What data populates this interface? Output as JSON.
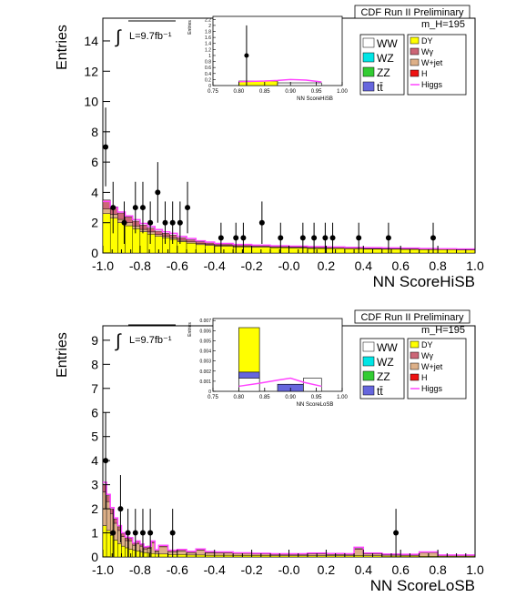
{
  "legend_items": [
    {
      "label": "WW",
      "color": "#ffffff"
    },
    {
      "label": "WZ",
      "color": "#00e5e5"
    },
    {
      "label": "ZZ",
      "color": "#33cc33"
    },
    {
      "label": "tt̄",
      "color": "#6666dd"
    },
    {
      "label": "DY",
      "color": "#ffff00"
    },
    {
      "label": "Wγ",
      "color": "#cc6677"
    },
    {
      "label": "W+jet",
      "color": "#ddb088"
    },
    {
      "label": "H",
      "color": "#ee1111"
    },
    {
      "label": "Higgs",
      "color": "#ff44ff"
    }
  ],
  "chart_data": [
    {
      "type": "bar",
      "header": "CDF Run II Preliminary",
      "mass_label": "m_H=195",
      "lumi_label": "L=9.7fb⁻¹",
      "xlabel": "NN ScoreHiSB",
      "ylabel": "Entries",
      "xlim": [
        -1.0,
        1.0
      ],
      "ylim": [
        0,
        15.5
      ],
      "xticks": [
        -1.0,
        -0.8,
        -0.6,
        -0.4,
        -0.2,
        0.0,
        0.2,
        0.4,
        0.6,
        0.8,
        1.0
      ],
      "xtick_labels": [
        "-1.0",
        "-0.8",
        "-0.6",
        "-0.4",
        "-0.2",
        "-0.0",
        "0.2",
        "0.4",
        "0.6",
        "0.8",
        "1.0"
      ],
      "yticks": [
        0,
        2,
        4,
        6,
        8,
        10,
        12,
        14
      ],
      "stack": [
        {
          "series": "DY",
          "color": "#ffff00",
          "x": [
            -1.0,
            -0.96,
            -0.92,
            -0.88,
            -0.84,
            -0.8,
            -0.76,
            -0.72,
            -0.68,
            -0.64,
            -0.6,
            -0.55,
            -0.5,
            -0.45,
            -0.4,
            -0.3,
            -0.2,
            -0.1,
            0.0,
            0.1,
            0.2,
            0.3,
            0.4,
            0.5,
            0.6,
            0.7,
            0.8,
            0.9
          ],
          "values": [
            2.6,
            2.3,
            2.0,
            1.8,
            1.6,
            1.4,
            1.25,
            1.1,
            1.0,
            0.9,
            0.75,
            0.65,
            0.55,
            0.5,
            0.45,
            0.4,
            0.38,
            0.35,
            0.33,
            0.3,
            0.3,
            0.28,
            0.26,
            0.25,
            0.24,
            0.22,
            0.22,
            0.2
          ]
        },
        {
          "series": "W+jet",
          "color": "#ddb088",
          "values": [
            0.3,
            0.25,
            0.22,
            0.2,
            0.18,
            0.16,
            0.14,
            0.12,
            0.1,
            0.1,
            0.09,
            0.08,
            0.07,
            0.06,
            0.05,
            0.05,
            0.05,
            0.04,
            0.04,
            0.04,
            0.04,
            0.03,
            0.03,
            0.03,
            0.03,
            0.03,
            0.02,
            0.02
          ]
        },
        {
          "series": "Wγ",
          "color": "#cc6677",
          "values": [
            0.6,
            0.5,
            0.42,
            0.38,
            0.32,
            0.28,
            0.25,
            0.22,
            0.2,
            0.18,
            0.16,
            0.14,
            0.12,
            0.1,
            0.08,
            0.07,
            0.06,
            0.05,
            0.05,
            0.05,
            0.04,
            0.04,
            0.04,
            0.04,
            0.03,
            0.03,
            0.03,
            0.03
          ]
        }
      ],
      "higgs": {
        "series": "Higgs",
        "color": "#ff44ff",
        "values": [
          3.4,
          3.0,
          2.7,
          2.45,
          2.2,
          1.95,
          1.75,
          1.55,
          1.4,
          1.3,
          1.1,
          0.95,
          0.8,
          0.72,
          0.63,
          0.56,
          0.52,
          0.47,
          0.45,
          0.42,
          0.4,
          0.37,
          0.35,
          0.34,
          0.32,
          0.29,
          0.28,
          0.26
        ]
      },
      "data_points": {
        "x": [
          -0.985,
          -0.945,
          -0.885,
          -0.825,
          -0.785,
          -0.745,
          -0.705,
          -0.665,
          -0.625,
          -0.585,
          -0.545,
          -0.365,
          -0.285,
          -0.245,
          -0.145,
          -0.045,
          0.075,
          0.135,
          0.195,
          0.235,
          0.375,
          0.535,
          0.775
        ],
        "y": [
          7,
          3,
          2,
          3,
          3,
          2,
          4,
          2,
          2,
          2,
          3,
          1,
          1,
          1,
          2,
          1,
          1,
          1,
          1,
          1,
          1,
          1,
          1
        ],
        "err": [
          2.6,
          1.7,
          1.4,
          1.7,
          1.7,
          1.4,
          2.0,
          1.4,
          1.4,
          1.4,
          1.7,
          1.0,
          1.0,
          1.0,
          1.4,
          1.0,
          1.0,
          1.0,
          1.0,
          1.0,
          1.0,
          1.0,
          1.0
        ]
      },
      "inset": {
        "xlim": [
          0.75,
          1.0
        ],
        "ylim": [
          0,
          2.3
        ],
        "ylabel": "Entries",
        "xlabel": "NN ScoreHiSB",
        "xticks": [
          0.75,
          0.8,
          0.85,
          0.9,
          0.95,
          1.0
        ],
        "xtick_labels": [
          "0.75",
          "0.80",
          "0.85",
          "0.90",
          "0.95",
          "1.00"
        ],
        "yticks": [
          0,
          0.2,
          0.4,
          0.6,
          0.8,
          1.0,
          1.2,
          1.4,
          1.6,
          1.8,
          2.0,
          2.2
        ],
        "ytick_labels": [
          "0",
          "0.2",
          "0.4",
          "0.6",
          "0.8",
          "1",
          "1.2",
          "1.4",
          "1.6",
          "1.8",
          "2",
          "2.2"
        ],
        "bars": [
          {
            "x0": 0.8,
            "x1": 0.875,
            "value": 0.15,
            "color": "#ffff00"
          },
          {
            "x0": 0.875,
            "x1": 0.96,
            "value": 0.09,
            "color": "#ffffff"
          }
        ],
        "higgs": {
          "x": [
            0.8,
            0.85,
            0.875,
            0.9,
            0.93,
            0.96
          ],
          "y": [
            0.13,
            0.15,
            0.17,
            0.2,
            0.18,
            0.12
          ]
        },
        "data_points": {
          "x": [
            0.815
          ],
          "y": [
            1
          ],
          "err": [
            1
          ]
        }
      }
    },
    {
      "type": "bar",
      "header": "CDF Run II Preliminary",
      "mass_label": "m_H=195",
      "lumi_label": "L=9.7fb⁻¹",
      "xlabel": "NN ScoreLoSB",
      "ylabel": "Entries",
      "xlim": [
        -1.0,
        1.0
      ],
      "ylim": [
        0,
        9.6
      ],
      "xticks": [
        -1.0,
        -0.8,
        -0.6,
        -0.4,
        -0.2,
        0.0,
        0.2,
        0.4,
        0.6,
        0.8,
        1.0
      ],
      "xtick_labels": [
        "-1.0",
        "-0.8",
        "-0.6",
        "-0.4",
        "-0.2",
        "-0.0",
        "0.2",
        "0.4",
        "0.6",
        "0.8",
        "1.0"
      ],
      "yticks": [
        0,
        1,
        2,
        3,
        4,
        5,
        6,
        7,
        8,
        9
      ],
      "stack": [
        {
          "series": "DY",
          "color": "#ffff00",
          "x": [
            -1.0,
            -0.98,
            -0.96,
            -0.94,
            -0.92,
            -0.9,
            -0.88,
            -0.86,
            -0.84,
            -0.82,
            -0.8,
            -0.78,
            -0.76,
            -0.74,
            -0.72,
            -0.7,
            -0.65,
            -0.6,
            -0.55,
            -0.5,
            -0.45,
            -0.4,
            -0.3,
            -0.2,
            -0.1,
            0.0,
            0.1,
            0.2,
            0.3,
            0.35,
            0.4,
            0.5,
            0.6,
            0.7,
            0.8,
            0.9
          ],
          "values": [
            1.3,
            1.1,
            0.9,
            0.7,
            0.55,
            0.45,
            0.38,
            0.32,
            0.28,
            0.25,
            0.2,
            0.18,
            0.16,
            0.14,
            0.12,
            0.12,
            0.1,
            0.1,
            0.08,
            0.08,
            0.07,
            0.07,
            0.06,
            0.06,
            0.05,
            0.05,
            0.05,
            0.05,
            0.05,
            0.06,
            0.05,
            0.04,
            0.04,
            0.03,
            0.03,
            0.03
          ]
        },
        {
          "series": "W+jet",
          "color": "#ddb088",
          "values": [
            1.4,
            1.2,
            0.9,
            0.7,
            0.55,
            0.4,
            0.3,
            0.35,
            0.2,
            0.3,
            0.25,
            0.15,
            0.2,
            0.45,
            0.1,
            0.3,
            0.12,
            0.15,
            0.1,
            0.2,
            0.1,
            0.1,
            0.08,
            0.06,
            0.05,
            0.05,
            0.08,
            0.06,
            0.05,
            0.25,
            0.08,
            0.05,
            0.04,
            0.15,
            0.03,
            0.03
          ]
        },
        {
          "series": "Wγ",
          "color": "#cc6677",
          "values": [
            0.3,
            0.25,
            0.2,
            0.18,
            0.15,
            0.12,
            0.1,
            0.1,
            0.08,
            0.08,
            0.06,
            0.06,
            0.05,
            0.05,
            0.04,
            0.04,
            0.04,
            0.04,
            0.03,
            0.03,
            0.03,
            0.03,
            0.02,
            0.02,
            0.02,
            0.02,
            0.02,
            0.02,
            0.02,
            0.04,
            0.02,
            0.02,
            0.02,
            0.02,
            0.01,
            0.01
          ]
        }
      ],
      "higgs": {
        "series": "Higgs",
        "color": "#ff44ff",
        "values": [
          3.1,
          2.6,
          2.05,
          1.62,
          1.3,
          1.0,
          0.82,
          0.8,
          0.58,
          0.66,
          0.54,
          0.42,
          0.44,
          0.66,
          0.3,
          0.48,
          0.28,
          0.31,
          0.23,
          0.33,
          0.22,
          0.21,
          0.17,
          0.15,
          0.13,
          0.13,
          0.16,
          0.14,
          0.13,
          0.4,
          0.16,
          0.12,
          0.11,
          0.21,
          0.08,
          0.08
        ]
      },
      "data_points": {
        "x": [
          -0.985,
          -0.945,
          -0.905,
          -0.865,
          -0.825,
          -0.785,
          -0.745,
          -0.625,
          0.575
        ],
        "y": [
          4,
          1,
          2,
          1,
          1,
          1,
          1,
          1,
          1
        ],
        "err": [
          2.0,
          1.0,
          1.4,
          1.0,
          1.0,
          1.0,
          1.0,
          1.0,
          1.0
        ]
      },
      "inset": {
        "xlim": [
          0.75,
          1.0
        ],
        "ylim": [
          0,
          0.0072
        ],
        "ylabel": "Entries",
        "xlabel": "NN ScoreLoSB",
        "xticks": [
          0.75,
          0.8,
          0.85,
          0.9,
          0.95,
          1.0
        ],
        "xtick_labels": [
          "0.75",
          "0.80",
          "0.85",
          "0.90",
          "0.95",
          "1.00"
        ],
        "yticks": [
          0,
          0.001,
          0.002,
          0.003,
          0.004,
          0.005,
          0.006,
          0.007
        ],
        "ytick_labels": [
          "0",
          "0.001",
          "0.002",
          "0.003",
          "0.004",
          "0.005",
          "0.006",
          "0.007"
        ],
        "bars": [
          {
            "x0": 0.8,
            "x1": 0.84,
            "value": 0.0063,
            "color": "#ffff00"
          },
          {
            "x0": 0.8,
            "x1": 0.84,
            "value": 0.0019,
            "color": "#6666dd"
          },
          {
            "x0": 0.8,
            "x1": 0.84,
            "value": 0.0013,
            "color": "#ffffff"
          },
          {
            "x0": 0.875,
            "x1": 0.925,
            "value": 0.0007,
            "color": "#6666dd"
          },
          {
            "x0": 0.925,
            "x1": 0.96,
            "value": 0.0013,
            "color": "#ffffff"
          }
        ],
        "higgs": {
          "x": [
            0.8,
            0.84,
            0.875,
            0.9,
            0.925,
            0.96
          ],
          "y": [
            0.0005,
            0.0008,
            0.0011,
            0.0013,
            0.0009,
            0.0005
          ]
        },
        "data_points": {
          "x": [],
          "y": [],
          "err": []
        }
      }
    }
  ]
}
